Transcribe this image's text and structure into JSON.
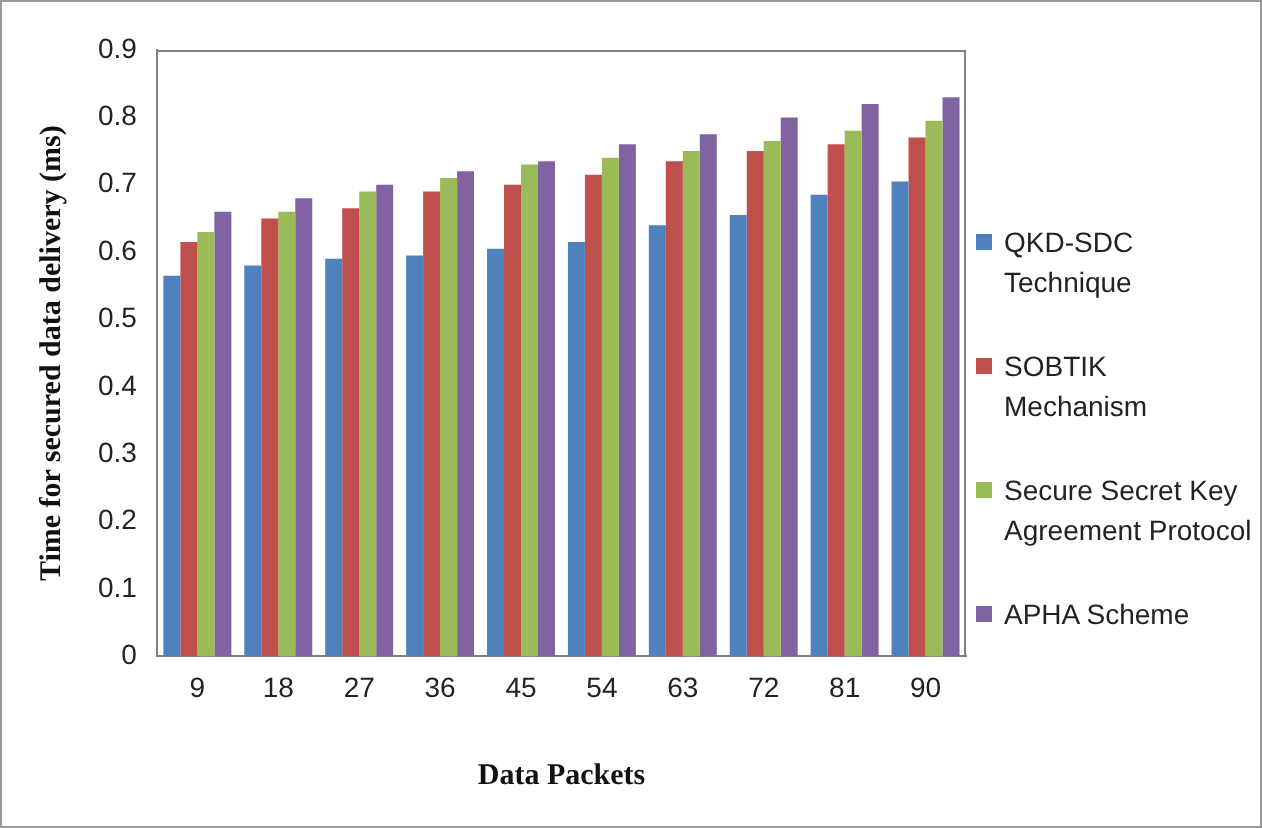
{
  "chart_data": {
    "type": "bar",
    "xlabel": "Data Packets",
    "ylabel": "Time for secured data delivery (ms)",
    "categories": [
      "9",
      "18",
      "27",
      "36",
      "45",
      "54",
      "63",
      "72",
      "81",
      "90"
    ],
    "series": [
      {
        "name": "QKD-SDC Technique",
        "color": "#4f81bd",
        "values": [
          0.565,
          0.58,
          0.59,
          0.595,
          0.605,
          0.615,
          0.64,
          0.655,
          0.685,
          0.705
        ]
      },
      {
        "name": "SOBTIK Mechanism",
        "color": "#c0504d",
        "values": [
          0.615,
          0.65,
          0.665,
          0.69,
          0.7,
          0.715,
          0.735,
          0.75,
          0.76,
          0.77
        ]
      },
      {
        "name": "Secure Secret Key Agreement Protocol",
        "color": "#9bbb59",
        "values": [
          0.63,
          0.66,
          0.69,
          0.71,
          0.73,
          0.74,
          0.75,
          0.765,
          0.78,
          0.795
        ]
      },
      {
        "name": "APHA Scheme",
        "color": "#8064a2",
        "values": [
          0.66,
          0.68,
          0.7,
          0.72,
          0.735,
          0.76,
          0.775,
          0.8,
          0.82,
          0.83
        ]
      }
    ],
    "ylim": [
      0,
      0.9
    ],
    "yticks": [
      0,
      0.1,
      0.2,
      0.3,
      0.4,
      0.5,
      0.6,
      0.7,
      0.8,
      0.9
    ],
    "grid": false,
    "legend": "right"
  }
}
